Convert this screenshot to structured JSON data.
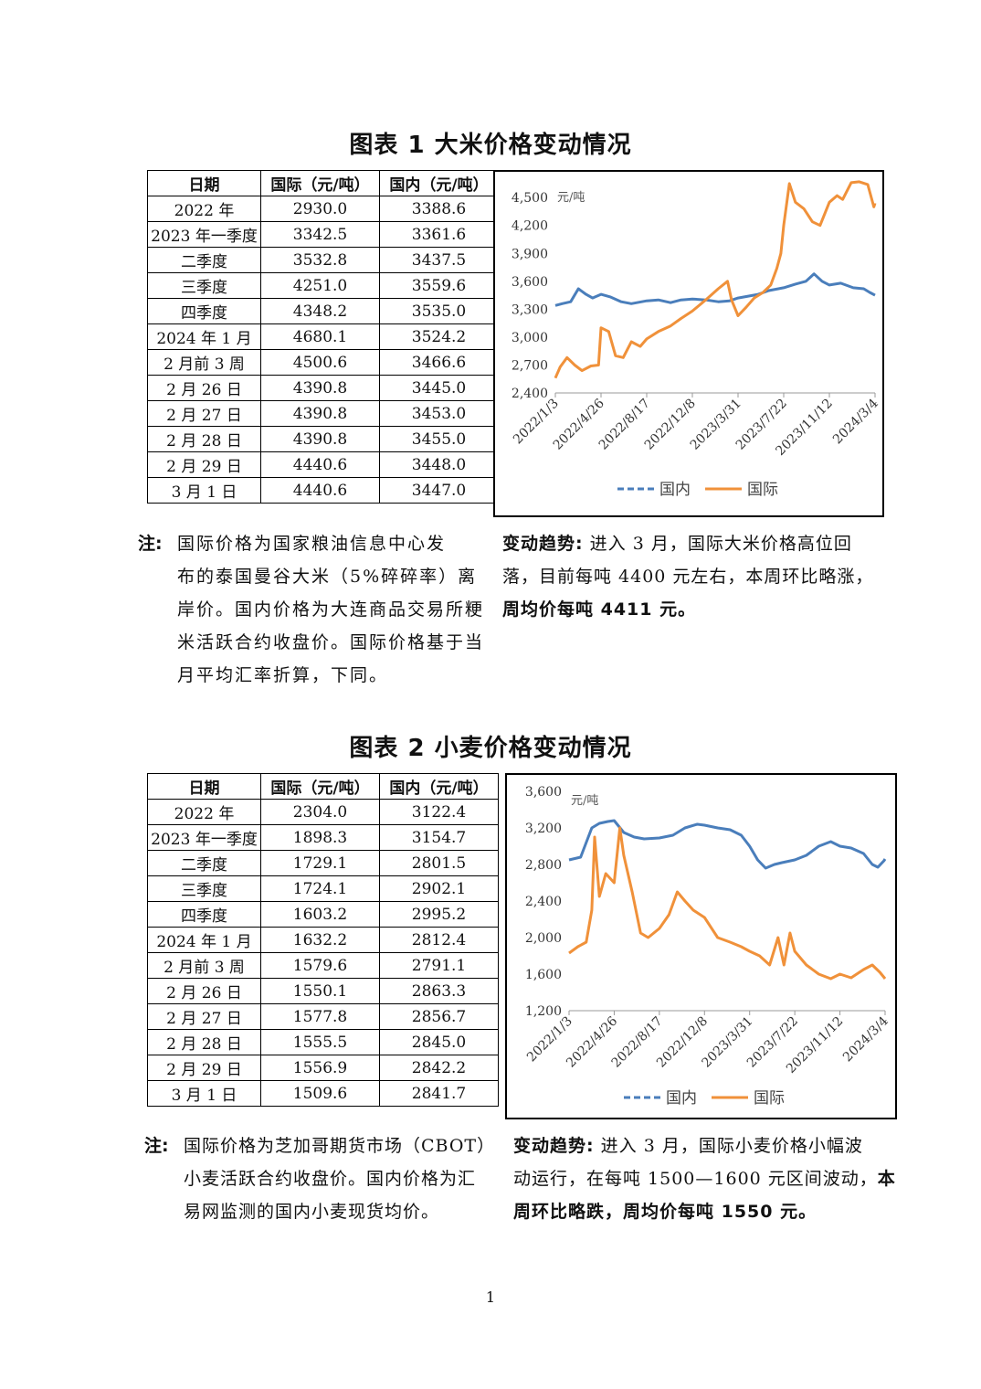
{
  "fig1": {
    "title": "图表 1  大米价格变动情况",
    "table": {
      "headers": [
        "日期",
        "国际（元/吨）",
        "国内（元/吨）"
      ],
      "rows": [
        [
          "2022 年",
          "2930.0",
          "3388.6"
        ],
        [
          "2023 年一季度",
          "3342.5",
          "3361.6"
        ],
        [
          "二季度",
          "3532.8",
          "3437.5"
        ],
        [
          "三季度",
          "4251.0",
          "3559.6"
        ],
        [
          "四季度",
          "4348.2",
          "3535.0"
        ],
        [
          "2024 年 1 月",
          "4680.1",
          "3524.2"
        ],
        [
          "2 月前 3 周",
          "4500.6",
          "3466.6"
        ],
        [
          "2 月 26 日",
          "4390.8",
          "3445.0"
        ],
        [
          "2 月 27 日",
          "4390.8",
          "3453.0"
        ],
        [
          "2 月 28 日",
          "4390.8",
          "3455.0"
        ],
        [
          "2 月 29 日",
          "4440.6",
          "3448.0"
        ],
        [
          "3 月 1 日",
          "4440.6",
          "3447.0"
        ]
      ]
    },
    "note_label": "注:",
    "note_lines": [
      "国际价格为国家粮油信息中心发",
      "布的泰国曼谷大米（5%碎碎率）离",
      "岸价。国内价格为大连商品交易所粳",
      "米活跃合约收盘价。国际价格基于当",
      "月平均汇率折算，下同。"
    ],
    "trend_label": "变动趋势:",
    "trend_line1": " 进入 3 月，国际大米价格高位回",
    "trend_line2": "落，目前每吨 4400 元左右，本周环比略涨，",
    "trend_bold": "周均价每吨 4411 元。"
  },
  "fig2": {
    "title": "图表 2  小麦价格变动情况",
    "table": {
      "headers": [
        "日期",
        "国际（元/吨）",
        "国内（元/吨）"
      ],
      "rows": [
        [
          "2022 年",
          "2304.0",
          "3122.4"
        ],
        [
          "2023 年一季度",
          "1898.3",
          "3154.7"
        ],
        [
          "二季度",
          "1729.1",
          "2801.5"
        ],
        [
          "三季度",
          "1724.1",
          "2902.1"
        ],
        [
          "四季度",
          "1603.2",
          "2995.2"
        ],
        [
          "2024 年 1 月",
          "1632.2",
          "2812.4"
        ],
        [
          "2 月前 3 周",
          "1579.6",
          "2791.1"
        ],
        [
          "2 月 26 日",
          "1550.1",
          "2863.3"
        ],
        [
          "2 月 27 日",
          "1577.8",
          "2856.7"
        ],
        [
          "2 月 28 日",
          "1555.5",
          "2845.0"
        ],
        [
          "2 月 29 日",
          "1556.9",
          "2842.2"
        ],
        [
          "3 月 1 日",
          "1509.6",
          "2841.7"
        ]
      ]
    },
    "note_label": "注:",
    "note_lines": [
      "国际价格为芝加哥期货市场（CBOT）",
      "小麦活跃合约收盘价。国内价格为汇",
      "易网监测的国内小麦现货均价。"
    ],
    "trend_label": "变动趋势:",
    "trend_line1": " 进入 3 月，国际小麦价格小幅波",
    "trend_line2a": "动运行，在每吨 1500—1600 元区间波动，",
    "trend_line2b": "本",
    "trend_bold": "周环比略跌，周均价每吨 1550 元。"
  },
  "page_number": "1",
  "colors": {
    "domestic": "#4a7ebb",
    "international": "#f0913a"
  },
  "chart_data": [
    {
      "type": "line",
      "unit_label": "元/吨",
      "ylim": [
        2400,
        4600
      ],
      "yticks": [
        "2,400",
        "2,700",
        "3,000",
        "3,300",
        "3,600",
        "3,900",
        "4,200",
        "4,500"
      ],
      "ytick_values": [
        2400,
        2700,
        3000,
        3300,
        3600,
        3900,
        4200,
        4500
      ],
      "xticks": [
        "2022/1/3",
        "2022/4/26",
        "2022/8/17",
        "2022/12/8",
        "2023/3/31",
        "2023/7/22",
        "2023/11/12",
        "2024/3/4"
      ],
      "legend": "bottom",
      "series": [
        {
          "name": "国内",
          "color": "#4a7ebb",
          "x": [
            "2022/1/3",
            "2022/1/20",
            "2022/2/10",
            "2022/3/1",
            "2022/3/20",
            "2022/4/5",
            "2022/4/26",
            "2022/5/20",
            "2022/6/15",
            "2022/7/10",
            "2022/8/17",
            "2022/9/15",
            "2022/10/15",
            "2022/11/10",
            "2022/12/8",
            "2023/1/10",
            "2023/2/10",
            "2023/3/10",
            "2023/3/31",
            "2023/4/25",
            "2023/5/20",
            "2023/6/15",
            "2023/7/22",
            "2023/8/20",
            "2023/9/15",
            "2023/10/5",
            "2023/10/25",
            "2023/11/12",
            "2023/12/10",
            "2024/1/10",
            "2024/2/5",
            "2024/2/20",
            "2024/3/4"
          ],
          "y": [
            3340,
            3360,
            3380,
            3520,
            3460,
            3420,
            3460,
            3430,
            3380,
            3360,
            3390,
            3400,
            3370,
            3400,
            3410,
            3400,
            3380,
            3390,
            3420,
            3440,
            3460,
            3500,
            3530,
            3570,
            3600,
            3680,
            3600,
            3560,
            3580,
            3530,
            3520,
            3480,
            3450
          ]
        },
        {
          "name": "国际",
          "color": "#f0913a",
          "x": [
            "2022/1/3",
            "2022/1/15",
            "2022/2/1",
            "2022/2/20",
            "2022/3/10",
            "2022/4/1",
            "2022/4/20",
            "2022/4/26",
            "2022/5/15",
            "2022/6/1",
            "2022/6/20",
            "2022/7/10",
            "2022/8/1",
            "2022/8/17",
            "2022/9/15",
            "2022/10/15",
            "2022/11/10",
            "2022/12/8",
            "2023/1/10",
            "2023/2/10",
            "2023/3/5",
            "2023/3/15",
            "2023/3/31",
            "2023/4/20",
            "2023/5/10",
            "2023/6/1",
            "2023/6/20",
            "2023/7/5",
            "2023/7/15",
            "2023/7/22",
            "2023/8/5",
            "2023/8/20",
            "2023/9/10",
            "2023/10/1",
            "2023/10/20",
            "2023/11/12",
            "2023/12/1",
            "2023/12/15",
            "2024/1/5",
            "2024/1/25",
            "2024/2/15",
            "2024/3/1",
            "2024/3/4"
          ],
          "y": [
            2560,
            2680,
            2780,
            2700,
            2640,
            2690,
            2700,
            3100,
            3060,
            2800,
            2780,
            2950,
            2900,
            2980,
            3060,
            3120,
            3200,
            3280,
            3400,
            3520,
            3600,
            3400,
            3230,
            3320,
            3420,
            3480,
            3560,
            3740,
            3900,
            4200,
            4650,
            4450,
            4380,
            4240,
            4200,
            4450,
            4520,
            4480,
            4660,
            4670,
            4640,
            4400,
            4440
          ]
        }
      ]
    },
    {
      "type": "line",
      "unit_label": "元/吨",
      "ylim": [
        1200,
        3600
      ],
      "yticks": [
        "1,200",
        "1,600",
        "2,000",
        "2,400",
        "2,800",
        "3,200",
        "3,600"
      ],
      "ytick_values": [
        1200,
        1600,
        2000,
        2400,
        2800,
        3200,
        3600
      ],
      "xticks": [
        "2022/1/3",
        "2022/4/26",
        "2022/8/17",
        "2022/12/8",
        "2023/3/31",
        "2023/7/22",
        "2023/11/12",
        "2024/3/4"
      ],
      "legend": "bottom",
      "series": [
        {
          "name": "国内",
          "color": "#4a7ebb",
          "x": [
            "2022/1/3",
            "2022/2/1",
            "2022/3/1",
            "2022/3/20",
            "2022/4/10",
            "2022/4/26",
            "2022/5/20",
            "2022/6/15",
            "2022/7/10",
            "2022/8/17",
            "2022/9/20",
            "2022/10/20",
            "2022/11/20",
            "2022/12/8",
            "2023/1/10",
            "2023/2/10",
            "2023/3/10",
            "2023/3/31",
            "2023/4/20",
            "2023/5/10",
            "2023/6/1",
            "2023/6/20",
            "2023/7/22",
            "2023/8/20",
            "2023/9/20",
            "2023/10/20",
            "2023/11/12",
            "2023/12/10",
            "2024/1/10",
            "2024/2/1",
            "2024/2/15",
            "2024/3/1",
            "2024/3/4"
          ],
          "y": [
            2850,
            2880,
            3200,
            3250,
            3270,
            3280,
            3150,
            3100,
            3080,
            3090,
            3120,
            3200,
            3240,
            3230,
            3200,
            3180,
            3120,
            3000,
            2850,
            2760,
            2800,
            2820,
            2850,
            2900,
            3000,
            3050,
            3000,
            2980,
            2920,
            2800,
            2770,
            2840,
            2860
          ]
        },
        {
          "name": "国际",
          "color": "#f0913a",
          "x": [
            "2022/1/3",
            "2022/1/25",
            "2022/2/15",
            "2022/3/1",
            "2022/3/8",
            "2022/3/20",
            "2022/4/5",
            "2022/4/26",
            "2022/5/10",
            "2022/5/20",
            "2022/6/10",
            "2022/7/1",
            "2022/7/20",
            "2022/8/17",
            "2022/9/10",
            "2022/10/1",
            "2022/10/20",
            "2022/11/10",
            "2022/12/8",
            "2023/1/10",
            "2023/2/10",
            "2023/3/10",
            "2023/3/31",
            "2023/4/25",
            "2023/5/20",
            "2023/6/10",
            "2023/6/25",
            "2023/7/10",
            "2023/7/22",
            "2023/8/20",
            "2023/9/20",
            "2023/10/20",
            "2023/11/12",
            "2023/12/10",
            "2024/1/10",
            "2024/2/1",
            "2024/2/20",
            "2024/3/4"
          ],
          "y": [
            1830,
            1900,
            1950,
            2300,
            3100,
            2450,
            2700,
            2600,
            3200,
            2900,
            2500,
            2050,
            2000,
            2100,
            2250,
            2500,
            2400,
            2300,
            2220,
            2000,
            1950,
            1900,
            1850,
            1800,
            1700,
            2000,
            1700,
            2050,
            1850,
            1700,
            1600,
            1550,
            1600,
            1560,
            1650,
            1700,
            1620,
            1550
          ]
        }
      ]
    }
  ]
}
